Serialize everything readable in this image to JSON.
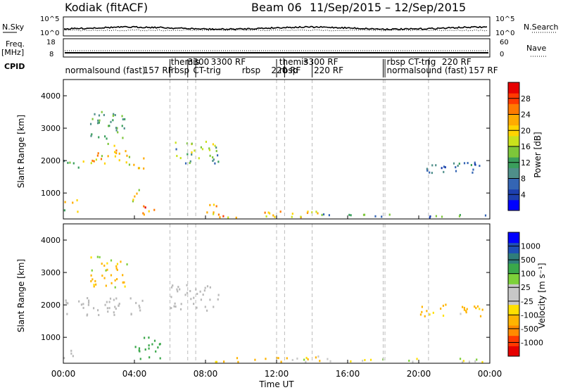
{
  "header": {
    "station": "Kodiak (fitACF)",
    "beam": "Beam 06",
    "dates": "11/Sep/2015 – 12/Sep/2015"
  },
  "strips": {
    "nsky_label": "N.Sky",
    "nsky_ticks": [
      "10^5",
      "10^0"
    ],
    "nsearch_label": "N.Search",
    "nsearch_ticks": [
      "10^5",
      "10^0"
    ],
    "freq_label": "Freq.",
    "freq_unit": "[MHz]",
    "freq_ticks": [
      "18",
      "8"
    ],
    "nave_label": "Nave",
    "nave_ticks": [
      "60",
      "0"
    ],
    "cpid_label": "CPID"
  },
  "cpid_segments": [
    {
      "label": "normalsound (fast)",
      "time": 0.1,
      "row": 2
    },
    {
      "label": "157 RF",
      "time": 4.5,
      "row": 2
    },
    {
      "label": "themis",
      "time": 6.05,
      "row": 1
    },
    {
      "label": "rbsp",
      "time": 6.05,
      "row": 2
    },
    {
      "label": "3300",
      "time": 7.0,
      "row": 1
    },
    {
      "label": "CT-trig",
      "time": 7.3,
      "row": 2
    },
    {
      "label": "3300 RF",
      "time": 8.3,
      "row": 1
    },
    {
      "label": "rbsp",
      "time": 10.05,
      "row": 2
    },
    {
      "label": "220 RF",
      "time": 11.7,
      "row": 2
    },
    {
      "label": "themis",
      "time": 12.15,
      "row": 1
    },
    {
      "label": "rbsp",
      "time": 12.15,
      "row": 2
    },
    {
      "label": "3300 RF",
      "time": 13.5,
      "row": 1
    },
    {
      "label": "220 RF",
      "time": 14.1,
      "row": 2
    },
    {
      "label": "rbsp",
      "time": 18.2,
      "row": 1
    },
    {
      "label": "CT-trig",
      "time": 19.4,
      "row": 1
    },
    {
      "label": "220 RF",
      "time": 21.3,
      "row": 1
    },
    {
      "label": "normalsound (fast)",
      "time": 18.2,
      "row": 2
    },
    {
      "label": "157 RF",
      "time": 22.8,
      "row": 2
    }
  ],
  "colors": {
    "power": [
      "#0000ff",
      "#1d3fae",
      "#3465b4",
      "#4f8f8a",
      "#3a9e5c",
      "#7dc63a",
      "#c9e21c",
      "#ffd400",
      "#ffab00",
      "#ff7a00",
      "#ff3a00",
      "#e60000"
    ],
    "velocity": [
      "#e60000",
      "#ff3a00",
      "#ff8a00",
      "#ffb400",
      "#ffe000",
      "#c8c8c8",
      "#c8c8c8",
      "#7dd03a",
      "#3aa84a",
      "#2f7d7a",
      "#1f4fb4",
      "#0000ff"
    ],
    "ground": "#b9b9b9"
  },
  "chart_data": {
    "type": "heatmap",
    "x": {
      "label": "Time UT",
      "range": [
        0,
        24
      ],
      "ticks": [
        "00:00",
        "04:00",
        "08:00",
        "12:00",
        "16:00",
        "20:00",
        "00:00"
      ],
      "tick_values": [
        0,
        4,
        8,
        12,
        16,
        20,
        24
      ]
    },
    "y": {
      "label": "Slant Range [km]",
      "range": [
        200,
        4500
      ],
      "ticks": [
        "1000",
        "2000",
        "3000",
        "4000"
      ],
      "tick_values": [
        1000,
        2000,
        3000,
        4000
      ]
    },
    "power_colorbar": {
      "label": "Power [dB]",
      "range": [
        0,
        32
      ],
      "ticks": [
        "4",
        "8",
        "12",
        "16",
        "20",
        "24",
        "28"
      ],
      "tick_values": [
        4,
        8,
        12,
        16,
        20,
        24,
        28
      ]
    },
    "velocity_colorbar": {
      "label": "Velocity [m s⁻¹]",
      "ticks": [
        "1000",
        "500",
        "100",
        "25",
        "-25",
        "-100",
        "-500",
        "-1000"
      ]
    },
    "cpid_change_times": [
      6.0,
      7.0,
      7.45,
      12.0,
      12.45,
      14.0,
      18.0,
      18.1,
      20.55
    ],
    "power_regions": [
      {
        "t": [
          0.0,
          1.0
        ],
        "r": [
          1700,
          2000
        ],
        "p": [
          8,
          16
        ]
      },
      {
        "t": [
          1.0,
          2.6
        ],
        "r": [
          1850,
          2250
        ],
        "p": [
          14,
          26
        ]
      },
      {
        "t": [
          2.6,
          3.6
        ],
        "r": [
          1900,
          2500
        ],
        "p": [
          16,
          26
        ]
      },
      {
        "t": [
          3.6,
          4.6
        ],
        "r": [
          1700,
          2100
        ],
        "p": [
          12,
          24
        ]
      },
      {
        "t": [
          1.5,
          3.5
        ],
        "r": [
          2500,
          3500
        ],
        "p": [
          8,
          16
        ]
      },
      {
        "t": [
          0.0,
          0.8
        ],
        "r": [
          400,
          800
        ],
        "p": [
          12,
          24
        ]
      },
      {
        "t": [
          3.8,
          4.5
        ],
        "r": [
          700,
          1100
        ],
        "p": [
          14,
          24
        ]
      },
      {
        "t": [
          4.3,
          5.5
        ],
        "r": [
          300,
          600
        ],
        "p": [
          20,
          30
        ]
      },
      {
        "t": [
          6.0,
          8.7
        ],
        "r": [
          1900,
          2600
        ],
        "p": [
          6,
          20
        ]
      },
      {
        "t": [
          7.8,
          8.8
        ],
        "r": [
          300,
          700
        ],
        "p": [
          16,
          28
        ]
      },
      {
        "t": [
          8.5,
          14.5
        ],
        "r": [
          220,
          420
        ],
        "p": [
          16,
          28
        ]
      },
      {
        "t": [
          14.5,
          24.0
        ],
        "r": [
          220,
          330
        ],
        "p": [
          4,
          16
        ]
      },
      {
        "t": [
          20.0,
          23.6
        ],
        "r": [
          1600,
          2000
        ],
        "p": [
          4,
          12
        ]
      }
    ],
    "velocity_regions": [
      {
        "t": [
          0.0,
          4.5
        ],
        "r": [
          1650,
          2200
        ],
        "kind": "ground"
      },
      {
        "t": [
          6.0,
          8.7
        ],
        "r": [
          1800,
          2600
        ],
        "kind": "ground"
      },
      {
        "t": [
          0.0,
          0.6
        ],
        "r": [
          300,
          700
        ],
        "kind": "ground"
      },
      {
        "t": [
          1.5,
          3.6
        ],
        "r": [
          2500,
          3500
        ],
        "v": [
          -500,
          100
        ]
      },
      {
        "t": [
          4.0,
          5.5
        ],
        "r": [
          300,
          1000
        ],
        "v": [
          100,
          500
        ]
      },
      {
        "t": [
          8.5,
          14.5
        ],
        "r": [
          220,
          420
        ],
        "v": [
          -500,
          100
        ]
      },
      {
        "t": [
          14.5,
          24.0
        ],
        "r": [
          220,
          330
        ],
        "v": [
          -100,
          100
        ]
      },
      {
        "t": [
          20.0,
          23.6
        ],
        "r": [
          1600,
          2000
        ],
        "v": [
          -500,
          25
        ]
      }
    ]
  }
}
